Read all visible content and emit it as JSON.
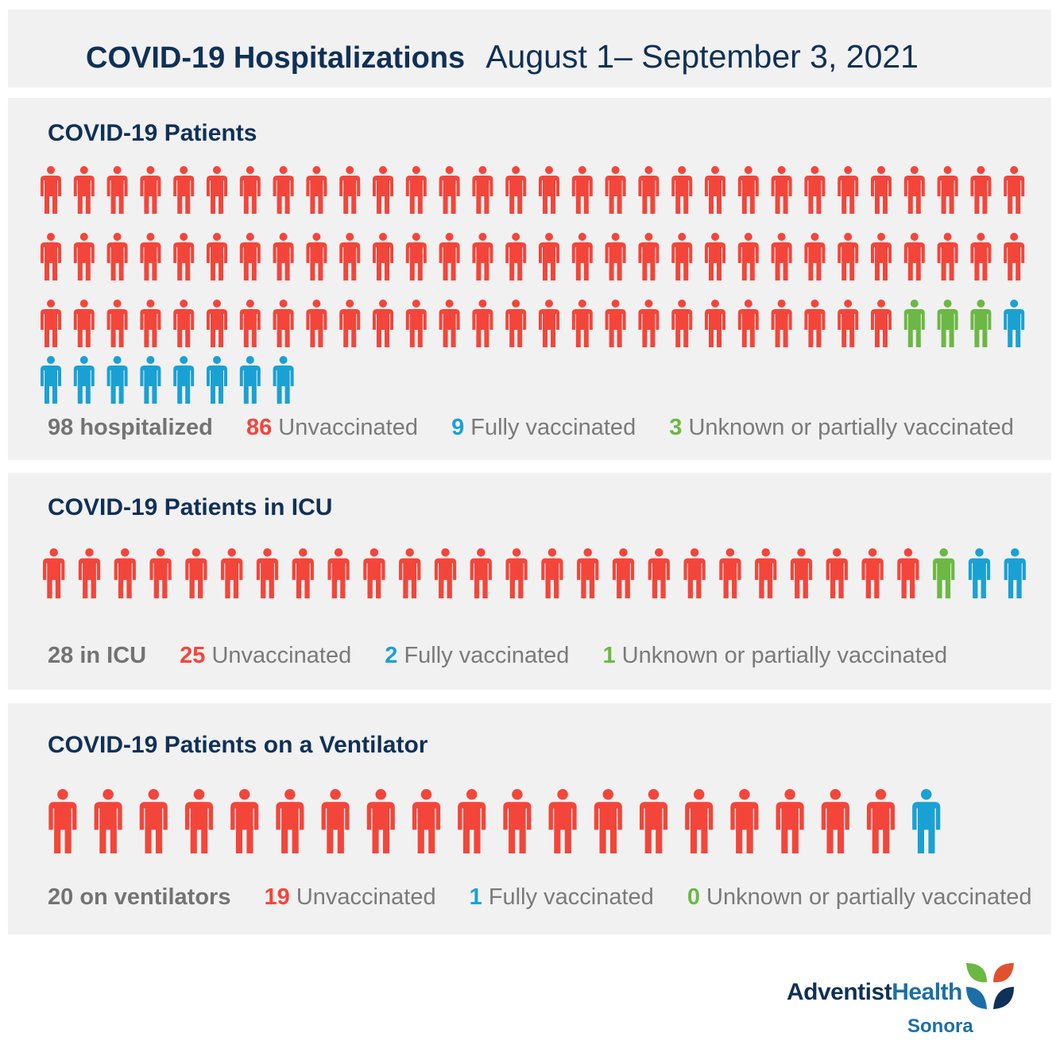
{
  "header": {
    "title": "COVID-19 Hospitalizations",
    "date_range": "August 1– September 3, 2021"
  },
  "colors": {
    "unvaccinated": "#f4453a",
    "fully_vaccinated": "#1aa1d4",
    "unknown": "#6cb844",
    "title": "#0f3057"
  },
  "icons": {
    "person": "person-icon"
  },
  "panels": [
    {
      "title": "COVID-19 Patients",
      "total_label": "98 hospitalized",
      "unvax_num": "86",
      "unvax_label": "Unvaccinated",
      "full_num": "9",
      "full_label": "Fully vaccinated",
      "unk_num": "3",
      "unk_label": "Unknown or partially vaccinated"
    },
    {
      "title": "COVID-19 Patients in ICU",
      "total_label": "28 in ICU",
      "unvax_num": "25",
      "unvax_label": "Unvaccinated",
      "full_num": "2",
      "full_label": "Fully vaccinated",
      "unk_num": "1",
      "unk_label": "Unknown or partially vaccinated"
    },
    {
      "title": "COVID-19 Patients on a Ventilator",
      "total_label": "20 on ventilators",
      "unvax_num": "19",
      "unvax_label": "Unvaccinated",
      "full_num": "1",
      "full_label": "Fully vaccinated",
      "unk_num": "0",
      "unk_label": "Unknown or partially vaccinated"
    }
  ],
  "chart_data": [
    {
      "type": "pictograph",
      "title": "COVID-19 Patients",
      "total": 98,
      "sequence": [
        {
          "category": "Unvaccinated",
          "count": 86
        },
        {
          "category": "Unknown or partially vaccinated",
          "count": 3
        },
        {
          "category": "Fully vaccinated",
          "count": 9
        }
      ]
    },
    {
      "type": "pictograph",
      "title": "COVID-19 Patients in ICU",
      "total": 28,
      "sequence": [
        {
          "category": "Unvaccinated",
          "count": 25
        },
        {
          "category": "Unknown or partially vaccinated",
          "count": 1
        },
        {
          "category": "Fully vaccinated",
          "count": 2
        }
      ]
    },
    {
      "type": "pictograph",
      "title": "COVID-19 Patients on a Ventilator",
      "total": 20,
      "sequence": [
        {
          "category": "Unvaccinated",
          "count": 19
        },
        {
          "category": "Unknown or partially vaccinated",
          "count": 0
        },
        {
          "category": "Fully vaccinated",
          "count": 1
        }
      ]
    }
  ],
  "logo": {
    "brand_a": "Adventist",
    "brand_b": "Health",
    "location": "Sonora"
  }
}
